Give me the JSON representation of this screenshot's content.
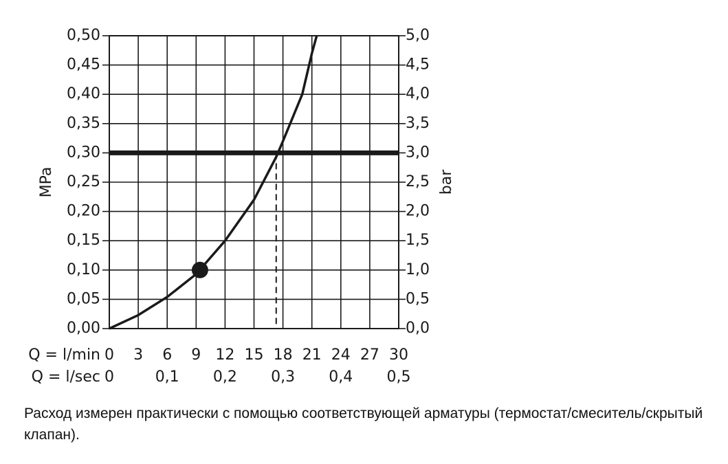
{
  "chart_data": {
    "type": "line",
    "y_label": "MPa",
    "y2_label": "bar",
    "x_label": "Q = l/min",
    "x2_label": "Q = l/sec",
    "x": [
      0,
      3,
      6,
      9,
      12,
      15,
      17.3,
      18,
      20,
      21,
      21.5
    ],
    "values": [
      0,
      0.023,
      0.054,
      0.093,
      0.15,
      0.22,
      0.293,
      0.32,
      0.4,
      0.47,
      0.5
    ],
    "color": "#1a1a1a",
    "marker": {
      "x": 9.4,
      "y": 0.1
    },
    "reference_line": {
      "y": 0.3
    },
    "dashed_x": 17.3,
    "xlim": [
      0,
      30
    ],
    "xticks": [
      0,
      3,
      6,
      9,
      12,
      15,
      18,
      21,
      24,
      27,
      30
    ],
    "x2lim": [
      0,
      0.5
    ],
    "x2ticks": [
      0,
      {
        "value": 0.1,
        "label": "0,1"
      },
      {
        "value": 0.2,
        "label": "0,2"
      },
      {
        "value": 0.3,
        "label": "0,3"
      },
      {
        "value": 0.4,
        "label": "0,4"
      },
      {
        "value": 0.5,
        "label": "0,5"
      }
    ],
    "ylim": [
      0,
      0.5
    ],
    "yticks": [
      {
        "value": 0,
        "label": "0,00"
      },
      {
        "value": 0.05,
        "label": "0,05"
      },
      {
        "value": 0.1,
        "label": "0,10"
      },
      {
        "value": 0.15,
        "label": "0,15"
      },
      {
        "value": 0.2,
        "label": "0,20"
      },
      {
        "value": 0.25,
        "label": "0,25"
      },
      {
        "value": 0.3,
        "label": "0,30"
      },
      {
        "value": 0.35,
        "label": "0,35"
      },
      {
        "value": 0.4,
        "label": "0,40"
      },
      {
        "value": 0.45,
        "label": "0,45"
      },
      {
        "value": 0.5,
        "label": "0,50"
      }
    ],
    "y2lim": [
      0,
      5
    ],
    "y2ticks": [
      {
        "value": 0,
        "label": "0,0"
      },
      {
        "value": 0.5,
        "label": "0,5"
      },
      {
        "value": 1,
        "label": "1,0"
      },
      {
        "value": 1.5,
        "label": "1,5"
      },
      {
        "value": 2,
        "label": "2,0"
      },
      {
        "value": 2.5,
        "label": "2,5"
      },
      {
        "value": 3,
        "label": "3,0"
      },
      {
        "value": 3.5,
        "label": "3,5"
      },
      {
        "value": 4,
        "label": "4,0"
      },
      {
        "value": 4.5,
        "label": "4,5"
      },
      {
        "value": 5,
        "label": "5,0"
      }
    ],
    "grid": true,
    "caption": "Расход измерен практически с помощью соответствующей арматуры (термостат/смеситель/скрытый клапан)."
  }
}
